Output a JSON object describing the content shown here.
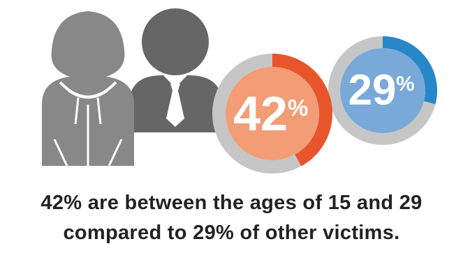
{
  "colors": {
    "person": "#888888",
    "person_dark": "#666666",
    "ring_track": "#c6c6c6",
    "orange_fill": "#f29d76",
    "orange_arc": "#e8552b",
    "blue_fill": "#78a9d8",
    "blue_arc": "#2787c8",
    "text": "#222222",
    "white": "#ffffff"
  },
  "icons": {
    "left_person": "hooded-person-icon",
    "right_person": "businessman-icon"
  },
  "chart_data": {
    "type": "pie",
    "charts": [
      {
        "value": 42,
        "number_label": "42",
        "unit_label": "%",
        "fill_color": "#f29d76",
        "arc_color": "#e8552b"
      },
      {
        "value": 29,
        "number_label": "29",
        "unit_label": "%",
        "fill_color": "#78a9d8",
        "arc_color": "#2787c8"
      }
    ]
  },
  "caption": {
    "line1": "42% are between the ages of 15 and 29",
    "line2": "compared to 29% of other victims."
  }
}
